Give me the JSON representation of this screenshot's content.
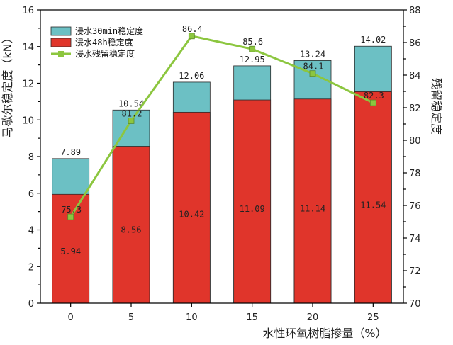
{
  "chart_data": {
    "type": "bar",
    "xlabel": "水性环氧树脂掺量（%）",
    "ylabel": "马歇尔稳定度（kN）",
    "y2label": "残留稳定度",
    "categories": [
      "0",
      "5",
      "10",
      "15",
      "20",
      "25"
    ],
    "ylim": [
      0,
      16
    ],
    "yticks": [
      0,
      2,
      4,
      6,
      8,
      10,
      12,
      14,
      16
    ],
    "y2lim": [
      70,
      88
    ],
    "y2ticks": [
      70,
      72,
      74,
      76,
      78,
      80,
      82,
      84,
      86,
      88
    ],
    "grid": false,
    "legend_position": "top-left",
    "series": [
      {
        "name": "浸水48h稳定度",
        "kind": "bar",
        "axis": "left",
        "color": "#e0352b",
        "values": [
          5.94,
          8.56,
          10.42,
          11.09,
          11.14,
          11.54
        ],
        "labels": [
          "5.94",
          "8.56",
          "10.42",
          "11.09",
          "11.14",
          "11.54"
        ]
      },
      {
        "name": "浸水30min稳定度",
        "kind": "bar",
        "axis": "left",
        "color": "#6cc0c4",
        "values": [
          7.89,
          10.54,
          12.06,
          12.95,
          13.24,
          14.02
        ],
        "labels": [
          "7.89",
          "10.54",
          "12.06",
          "12.95",
          "13.24",
          "14.02"
        ]
      },
      {
        "name": "浸水残留稳定度",
        "kind": "line",
        "axis": "right",
        "color": "#8cc63f",
        "values": [
          75.3,
          81.2,
          86.4,
          85.6,
          84.1,
          82.3
        ],
        "labels": [
          "75.3",
          "81.2",
          "86.4",
          "85.6",
          "84.1",
          "82.3"
        ]
      }
    ]
  }
}
